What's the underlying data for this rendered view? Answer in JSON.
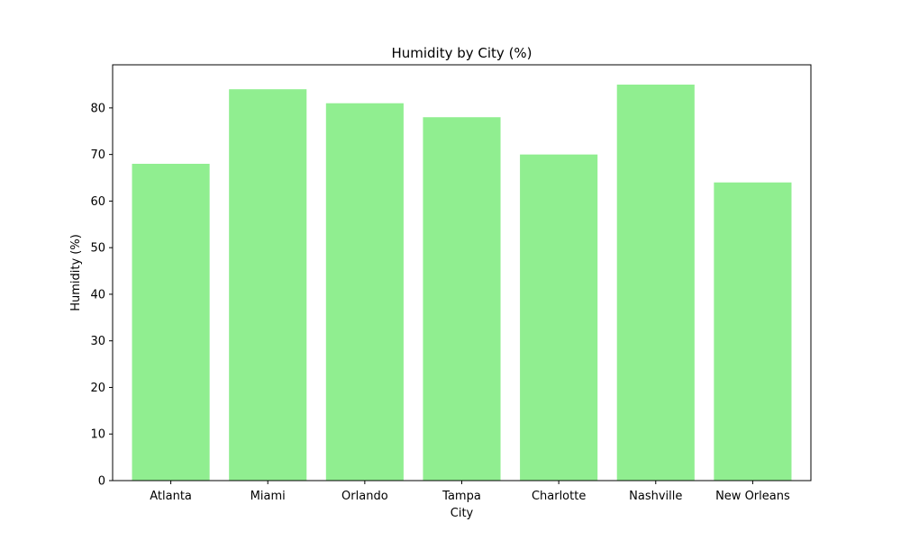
{
  "chart_data": {
    "type": "bar",
    "title": "Humidity by City (%)",
    "xlabel": "City",
    "ylabel": "Humidity (%)",
    "categories": [
      "Atlanta",
      "Miami",
      "Orlando",
      "Tampa",
      "Charlotte",
      "Nashville",
      "New Orleans"
    ],
    "values": [
      68,
      84,
      81,
      78,
      70,
      85,
      64
    ],
    "ylim": [
      0,
      89.25
    ],
    "yticks": [
      0,
      10,
      20,
      30,
      40,
      50,
      60,
      70,
      80
    ],
    "grid": false,
    "legend": "none",
    "bar_color": "#90ee90"
  }
}
